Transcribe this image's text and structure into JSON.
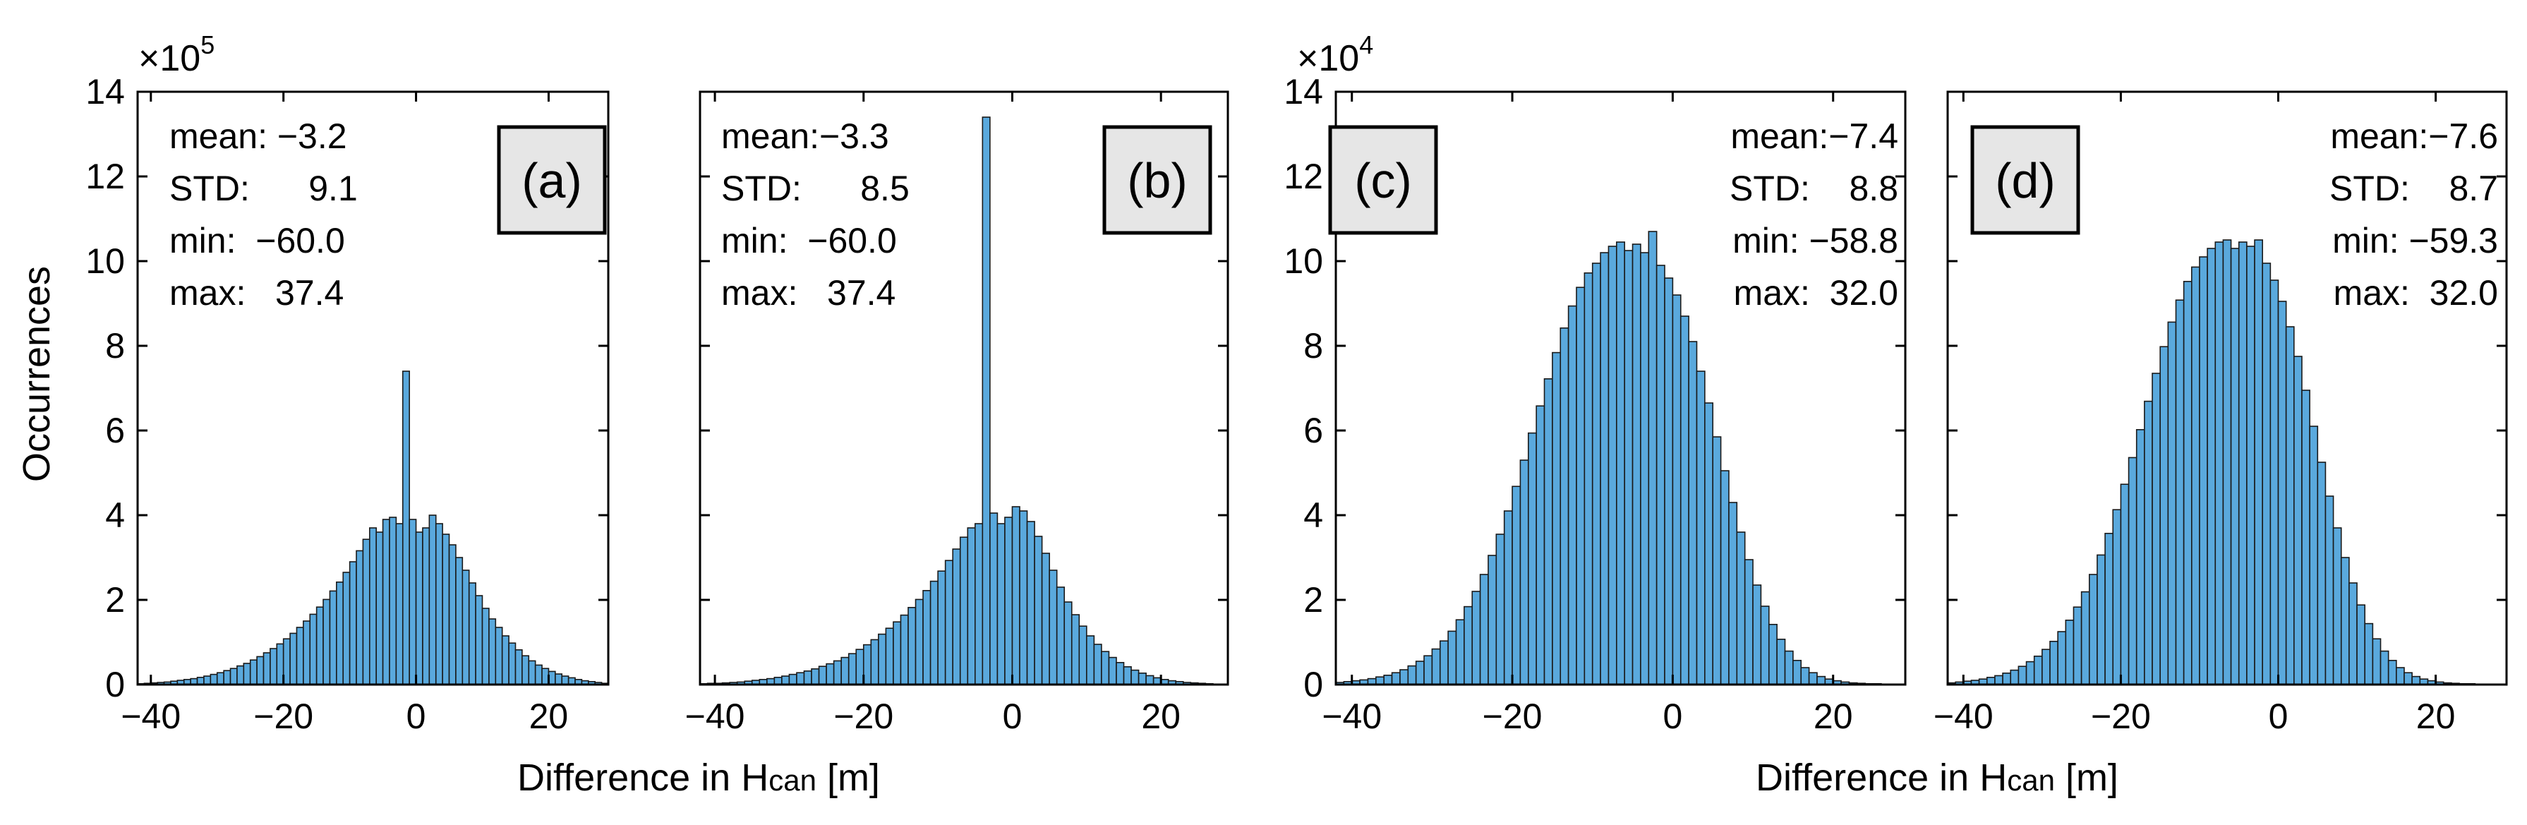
{
  "colors": {
    "bar_fill": "#5aa9dd",
    "bar_edge": "#1a1a1a",
    "axes": "#000000",
    "label_box": "#e6e6e6"
  },
  "xlabel": {
    "pre": "Difference in H",
    "sub": "can",
    "post": " [m]"
  },
  "ylabel": "Occurrences",
  "scale_labels": {
    "group1": {
      "base": "×10",
      "exp": "5"
    },
    "group2": {
      "base": "×10",
      "exp": "4"
    }
  },
  "chart_data": [
    {
      "type": "bar",
      "panel": "(a)",
      "xlim": [
        -42,
        29
      ],
      "ylim": [
        0,
        14
      ],
      "bin_start": -42,
      "bin_width": 1,
      "xticks": [
        -40,
        -20,
        0,
        20
      ],
      "xtick_labels": [
        "−40",
        "−20",
        "0",
        "20"
      ],
      "yticks": [
        0,
        2,
        4,
        6,
        8,
        10,
        12,
        14
      ],
      "ytick_labels": [
        "0",
        "2",
        "4",
        "6",
        "8",
        "10",
        "12",
        "14"
      ],
      "stats": [
        "mean: −3.2",
        "STD:      9.1",
        "min:  −60.0",
        "max:   37.4"
      ],
      "values": [
        0.02,
        0.03,
        0.04,
        0.05,
        0.06,
        0.08,
        0.1,
        0.12,
        0.14,
        0.17,
        0.2,
        0.24,
        0.28,
        0.33,
        0.38,
        0.44,
        0.5,
        0.58,
        0.66,
        0.75,
        0.85,
        0.96,
        1.08,
        1.21,
        1.35,
        1.5,
        1.66,
        1.83,
        2.01,
        2.21,
        2.42,
        2.65,
        2.9,
        3.16,
        3.43,
        3.7,
        3.6,
        3.9,
        3.95,
        3.8,
        7.4,
        3.9,
        3.6,
        3.7,
        4.0,
        3.8,
        3.55,
        3.3,
        3.0,
        2.7,
        2.4,
        2.1,
        1.8,
        1.55,
        1.35,
        1.15,
        0.98,
        0.82,
        0.68,
        0.56,
        0.46,
        0.38,
        0.31,
        0.25,
        0.2,
        0.16,
        0.12,
        0.09,
        0.07,
        0.05,
        0.03
      ]
    },
    {
      "type": "bar",
      "panel": "(b)",
      "xlim": [
        -42,
        29
      ],
      "ylim": [
        0,
        14
      ],
      "bin_start": -42,
      "bin_width": 1,
      "xticks": [
        -40,
        -20,
        0,
        20
      ],
      "xtick_labels": [
        "−40",
        "−20",
        "0",
        "20"
      ],
      "yticks": [
        0,
        2,
        4,
        6,
        8,
        10,
        12,
        14
      ],
      "ytick_labels": [
        "",
        "",
        "",
        "",
        "",
        "",
        "",
        ""
      ],
      "stats": [
        "mean:−3.3",
        "STD:      8.5",
        "min:  −60.0",
        "max:   37.4"
      ],
      "values": [
        0.02,
        0.03,
        0.03,
        0.04,
        0.05,
        0.06,
        0.08,
        0.1,
        0.12,
        0.14,
        0.17,
        0.2,
        0.24,
        0.28,
        0.32,
        0.37,
        0.43,
        0.49,
        0.56,
        0.64,
        0.73,
        0.83,
        0.94,
        1.06,
        1.19,
        1.33,
        1.48,
        1.64,
        1.82,
        2.01,
        2.22,
        2.44,
        2.68,
        2.93,
        3.2,
        3.48,
        3.7,
        3.8,
        13.4,
        4.05,
        3.8,
        3.95,
        4.2,
        4.1,
        3.85,
        3.5,
        3.1,
        2.7,
        2.3,
        1.95,
        1.65,
        1.38,
        1.15,
        0.95,
        0.78,
        0.64,
        0.52,
        0.42,
        0.34,
        0.27,
        0.21,
        0.16,
        0.12,
        0.09,
        0.07,
        0.05,
        0.04,
        0.03,
        0.02,
        0.01,
        0.01
      ]
    },
    {
      "type": "bar",
      "panel": "(c)",
      "xlim": [
        -42,
        29
      ],
      "ylim": [
        0,
        14
      ],
      "bin_start": -42,
      "bin_width": 1,
      "xticks": [
        -40,
        -20,
        0,
        20
      ],
      "xtick_labels": [
        "−40",
        "−20",
        "0",
        "20"
      ],
      "yticks": [
        0,
        2,
        4,
        6,
        8,
        10,
        12,
        14
      ],
      "ytick_labels": [
        "0",
        "2",
        "4",
        "6",
        "8",
        "10",
        "12",
        "14"
      ],
      "stats": [
        "mean:−7.4",
        "STD:    8.8",
        "min: −58.8",
        "max:  32.0"
      ],
      "values": [
        0.05,
        0.07,
        0.09,
        0.11,
        0.14,
        0.18,
        0.22,
        0.28,
        0.35,
        0.44,
        0.55,
        0.68,
        0.84,
        1.03,
        1.26,
        1.53,
        1.84,
        2.2,
        2.6,
        3.05,
        3.55,
        4.1,
        4.68,
        5.3,
        5.94,
        6.58,
        7.22,
        7.84,
        8.42,
        8.94,
        9.38,
        9.72,
        9.95,
        10.2,
        10.35,
        10.45,
        10.25,
        10.4,
        10.2,
        10.7,
        9.9,
        9.6,
        9.2,
        8.7,
        8.1,
        7.4,
        6.65,
        5.85,
        5.05,
        4.3,
        3.6,
        2.95,
        2.35,
        1.85,
        1.42,
        1.07,
        0.79,
        0.57,
        0.4,
        0.28,
        0.19,
        0.13,
        0.09,
        0.06,
        0.04,
        0.03,
        0.02,
        0.02,
        0.01,
        0.01,
        0.01
      ]
    },
    {
      "type": "bar",
      "panel": "(d)",
      "xlim": [
        -42,
        29
      ],
      "ylim": [
        0,
        14
      ],
      "bin_start": -42,
      "bin_width": 1,
      "xticks": [
        -40,
        -20,
        0,
        20
      ],
      "xtick_labels": [
        "−40",
        "−20",
        "0",
        "20"
      ],
      "yticks": [
        0,
        2,
        4,
        6,
        8,
        10,
        12,
        14
      ],
      "ytick_labels": [
        "",
        "",
        "",
        "",
        "",
        "",
        "",
        ""
      ],
      "stats": [
        "mean:−7.6",
        "STD:    8.7",
        "min: −59.3",
        "max:  32.0"
      ],
      "values": [
        0.04,
        0.06,
        0.08,
        0.1,
        0.13,
        0.17,
        0.21,
        0.27,
        0.34,
        0.43,
        0.54,
        0.67,
        0.83,
        1.02,
        1.25,
        1.52,
        1.83,
        2.19,
        2.6,
        3.06,
        3.57,
        4.13,
        4.73,
        5.36,
        6.02,
        6.69,
        7.35,
        7.98,
        8.56,
        9.08,
        9.52,
        9.86,
        10.1,
        10.3,
        10.45,
        10.5,
        10.3,
        10.45,
        10.35,
        10.5,
        9.95,
        9.55,
        9.05,
        8.45,
        7.75,
        6.95,
        6.1,
        5.25,
        4.45,
        3.7,
        3.0,
        2.4,
        1.88,
        1.44,
        1.08,
        0.79,
        0.57,
        0.4,
        0.28,
        0.19,
        0.13,
        0.09,
        0.06,
        0.04,
        0.03,
        0.02,
        0.02,
        0.01,
        0.01,
        0.01,
        0.0
      ]
    }
  ]
}
